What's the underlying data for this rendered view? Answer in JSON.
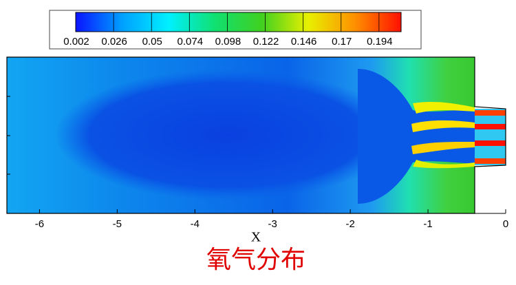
{
  "chart_data": {
    "type": "contour",
    "title": "氧气分布",
    "x_label": "X",
    "xlim": [
      -6.42,
      0
    ],
    "xticks": [
      -6,
      -5,
      -4,
      -3,
      -2,
      -1,
      0
    ],
    "colorbar": {
      "lim": [
        0.002,
        0.208
      ],
      "ticks": [
        0.002,
        0.026,
        0.05,
        0.074,
        0.098,
        0.122,
        0.146,
        0.17,
        0.194
      ],
      "colormap": [
        "#0a14ff",
        "#00a0ff",
        "#00f0ff",
        "#10e070",
        "#40d020",
        "#e8f000",
        "#ff9000",
        "#ff1000"
      ]
    }
  }
}
